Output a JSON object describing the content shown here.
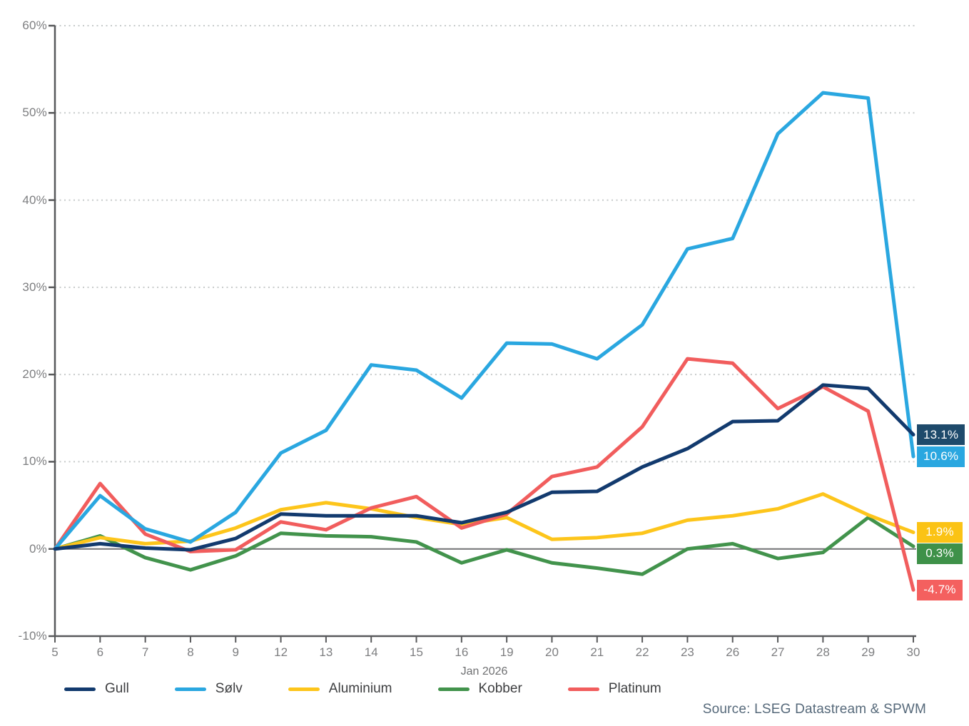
{
  "source": "Source: LSEG Datastream & SPWM",
  "chart_data": {
    "type": "line",
    "title": "",
    "x_axis_title": "Jan 2026",
    "x": [
      "5",
      "6",
      "7",
      "8",
      "9",
      "12",
      "13",
      "14",
      "15",
      "16",
      "19",
      "20",
      "21",
      "22",
      "23",
      "26",
      "27",
      "28",
      "29",
      "30"
    ],
    "ylim": [
      -10,
      60
    ],
    "y_tick_values": [
      60,
      50,
      40,
      30,
      20,
      10,
      0,
      -10
    ],
    "y_ticks": [
      "60%",
      "50%",
      "40%",
      "30%",
      "20%",
      "10%",
      "0%",
      "-10%"
    ],
    "grid": "horizontal dotted, solid zero line",
    "legend_position": "bottom",
    "axis_color": "#58595b",
    "zero_line_color": "#707173",
    "grid_color": "#c6caca",
    "series": [
      {
        "name": "Gull",
        "color": "#123a6e",
        "end_label": "13.1%",
        "end_label_bg": "#1e4a6b",
        "values": [
          0,
          0.6,
          0.1,
          -0.1,
          1.2,
          4.0,
          3.8,
          3.8,
          3.8,
          3.0,
          4.2,
          6.5,
          6.6,
          9.4,
          11.5,
          14.6,
          14.7,
          18.8,
          18.4,
          13.1
        ]
      },
      {
        "name": "Sølv",
        "color": "#2aa7e0",
        "end_label": "10.6%",
        "end_label_bg": "#2aa7e0",
        "values": [
          0,
          6.1,
          2.3,
          0.8,
          4.2,
          11.0,
          13.6,
          21.1,
          20.5,
          17.3,
          23.6,
          23.5,
          21.8,
          25.7,
          34.4,
          35.6,
          47.6,
          52.3,
          51.7,
          10.6
        ]
      },
      {
        "name": "Aluminium",
        "color": "#fdc51b",
        "end_label": "1.9%",
        "end_label_bg": "#fbc315",
        "values": [
          0,
          1.3,
          0.6,
          0.9,
          2.4,
          4.5,
          5.3,
          4.6,
          3.6,
          2.8,
          3.6,
          1.1,
          1.3,
          1.8,
          3.3,
          3.8,
          4.6,
          6.3,
          3.9,
          1.9
        ]
      },
      {
        "name": "Kobber",
        "color": "#42934c",
        "end_label": "0.3%",
        "end_label_bg": "#3e9149",
        "values": [
          0,
          1.5,
          -1.0,
          -2.4,
          -0.8,
          1.8,
          1.5,
          1.4,
          0.8,
          -1.6,
          -0.1,
          -1.6,
          -2.2,
          -2.9,
          0.0,
          0.6,
          -1.1,
          -0.4,
          3.6,
          0.3
        ]
      },
      {
        "name": "Platinum",
        "color": "#f15d5d",
        "end_label": "-4.7%",
        "end_label_bg": "#f4605f",
        "values": [
          0,
          7.5,
          1.7,
          -0.3,
          -0.1,
          3.1,
          2.2,
          4.7,
          6.0,
          2.4,
          4.0,
          8.3,
          9.4,
          14.0,
          21.8,
          21.3,
          16.1,
          18.6,
          15.8,
          -4.7
        ]
      }
    ]
  }
}
